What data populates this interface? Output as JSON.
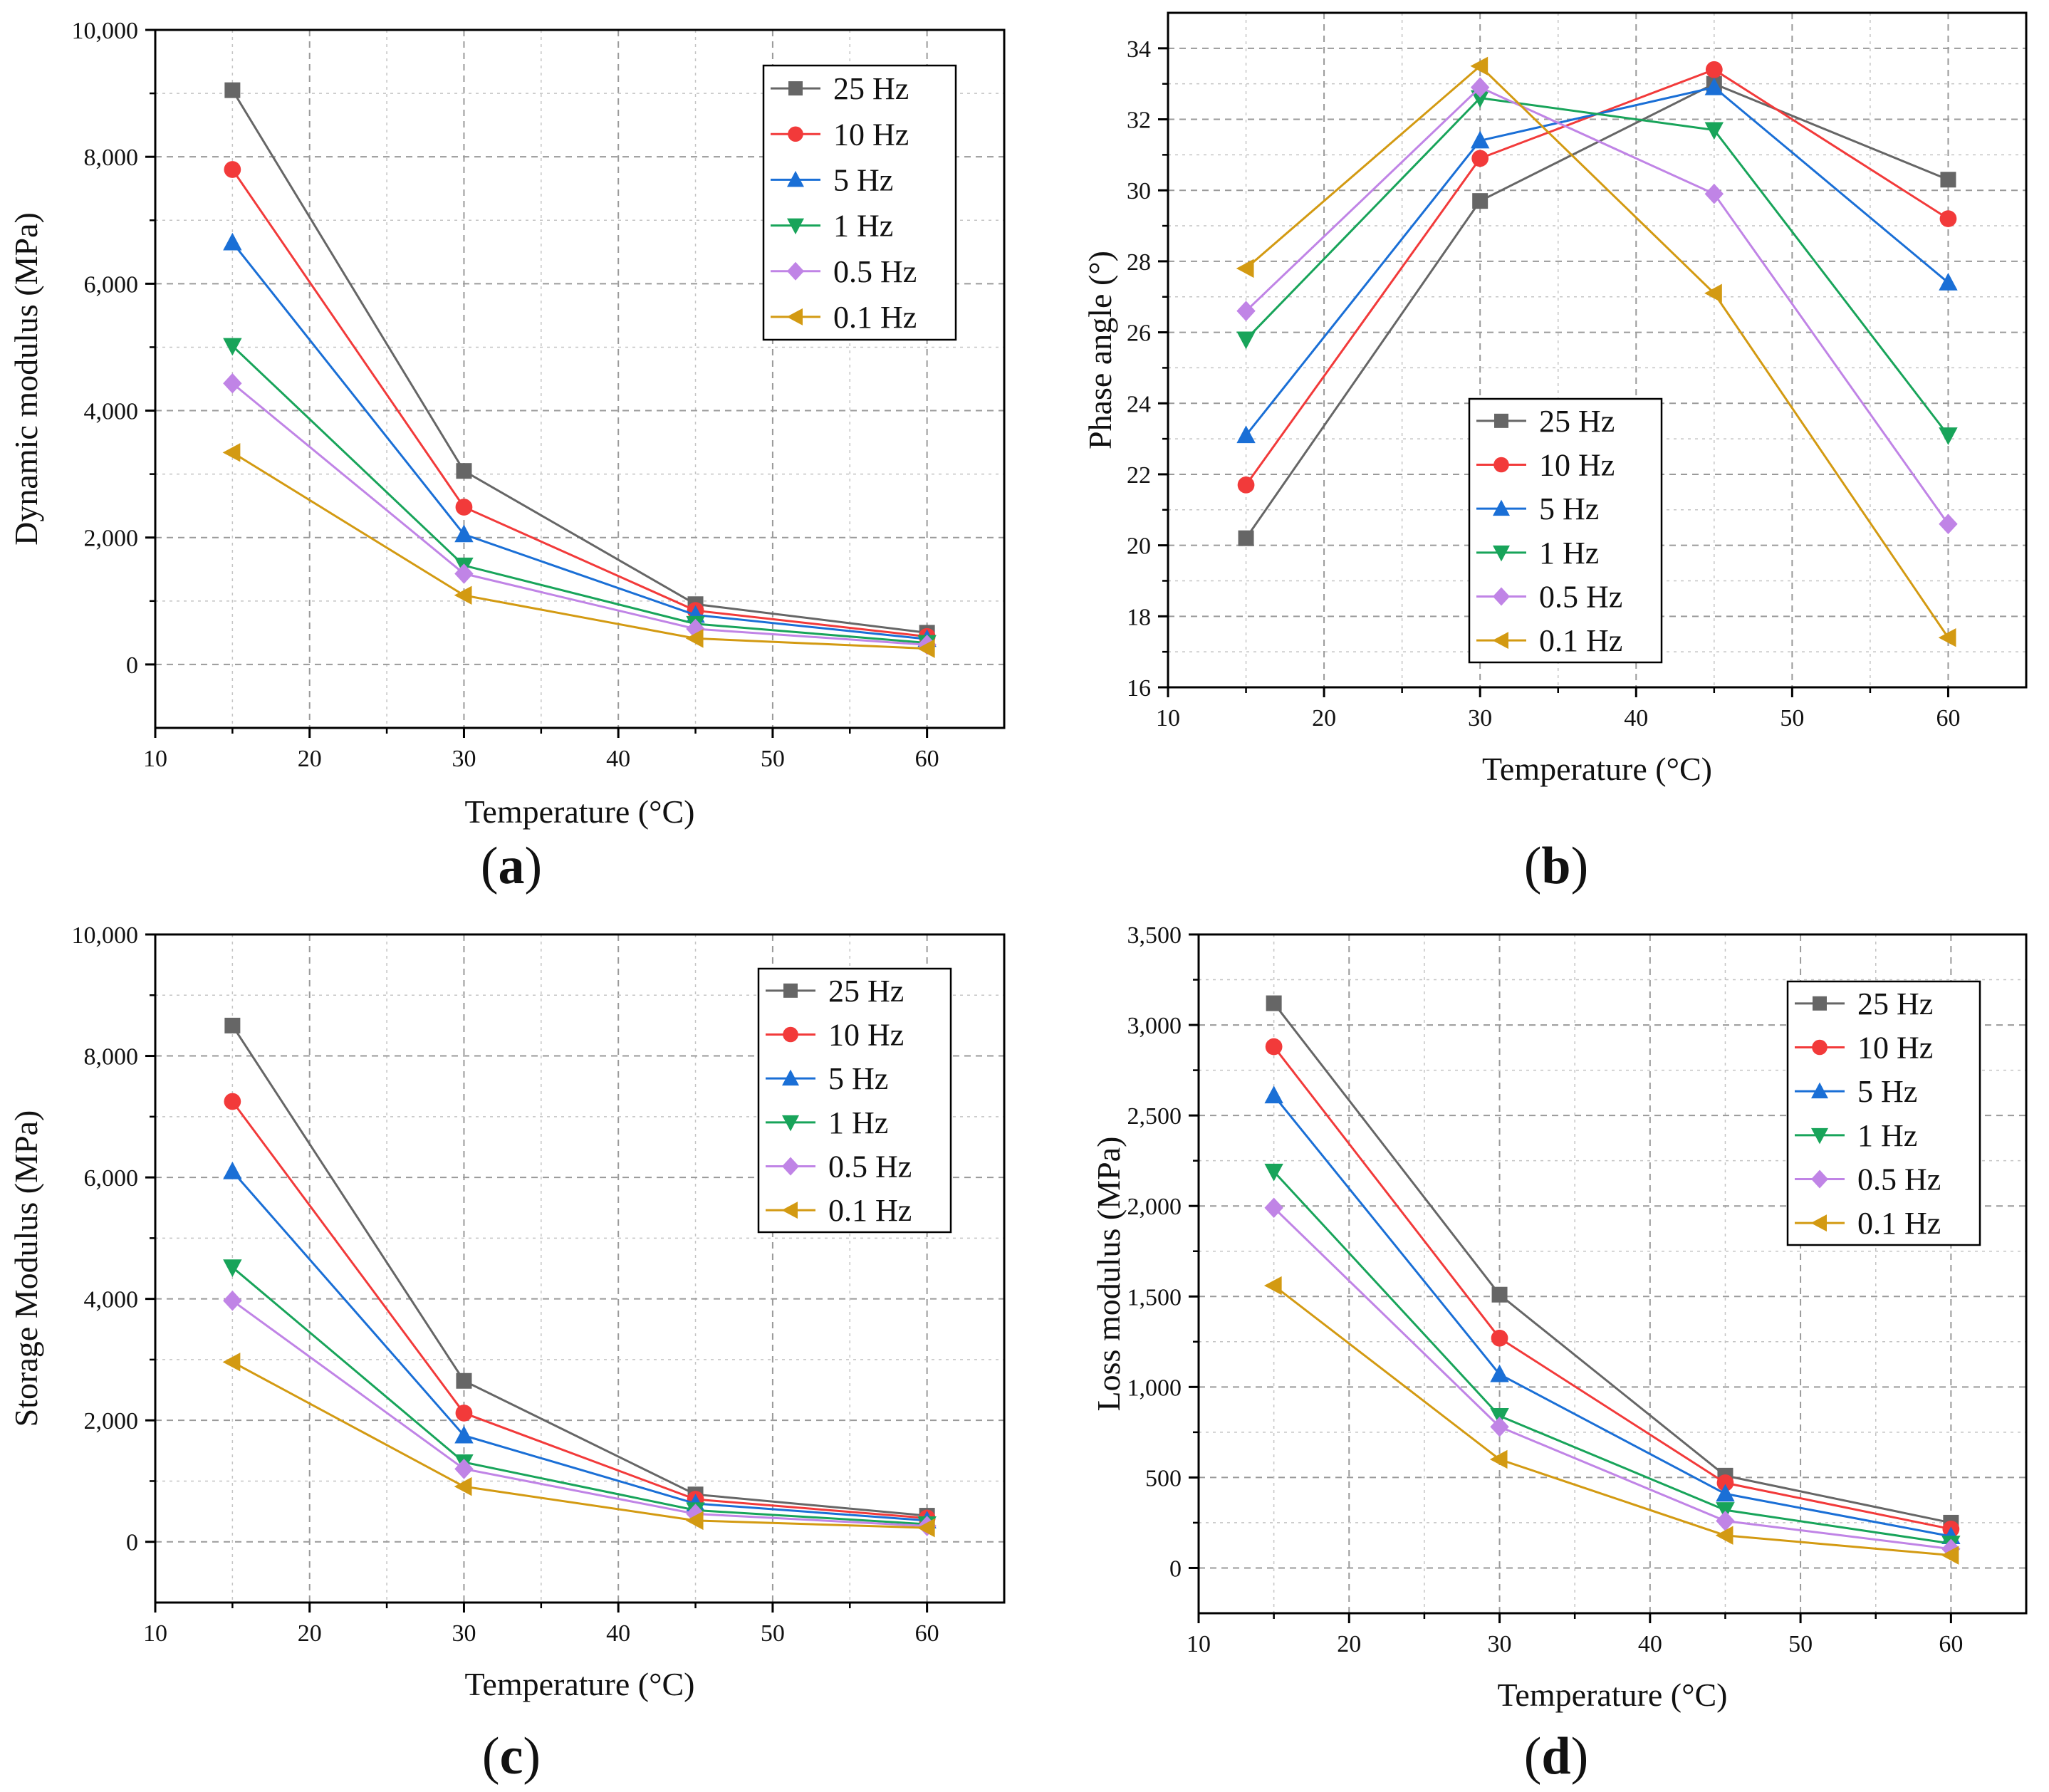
{
  "series_styles": {
    "25 Hz": {
      "color": "#666666",
      "marker": "square"
    },
    "10 Hz": {
      "color": "#f23a3a",
      "marker": "circle"
    },
    "5 Hz": {
      "color": "#1a6fd6",
      "marker": "triangle-up"
    },
    "1 Hz": {
      "color": "#18a45a",
      "marker": "triangle-down"
    },
    "0.5 Hz": {
      "color": "#c084e6",
      "marker": "diamond"
    },
    "0.1 Hz": {
      "color": "#d39a12",
      "marker": "triangle-left"
    }
  },
  "chart_data": [
    {
      "id": "a",
      "type": "line",
      "panel_label": "a",
      "xlabel": "Temperature (°C)",
      "ylabel": "Dynamic modulus (MPa)",
      "xlim": [
        10,
        65
      ],
      "ylim": [
        -1000,
        10000
      ],
      "xticks": [
        10,
        20,
        30,
        40,
        50,
        60
      ],
      "xtick_labels": [
        "10",
        "20",
        "30",
        "40",
        "50",
        "60"
      ],
      "yticks": [
        0,
        2000,
        4000,
        6000,
        8000,
        10000
      ],
      "ytick_labels": [
        "0",
        "2,000",
        "4,000",
        "6,000",
        "8,000",
        "10,000"
      ],
      "grid": true,
      "legend_position": "top-right",
      "x": [
        15,
        30,
        45,
        60
      ],
      "series": [
        {
          "name": "25 Hz",
          "values": [
            9050,
            3050,
            950,
            500
          ]
        },
        {
          "name": "10 Hz",
          "values": [
            7800,
            2480,
            850,
            440
          ]
        },
        {
          "name": "5 Hz",
          "values": [
            6650,
            2050,
            780,
            400
          ]
        },
        {
          "name": "1 Hz",
          "values": [
            5020,
            1560,
            640,
            340
          ]
        },
        {
          "name": "0.5 Hz",
          "values": [
            4430,
            1430,
            560,
            310
          ]
        },
        {
          "name": "0.1 Hz",
          "values": [
            3340,
            1090,
            410,
            250
          ]
        }
      ]
    },
    {
      "id": "b",
      "type": "line",
      "panel_label": "b",
      "xlabel": "Temperature (°C)",
      "ylabel": "Phase angle (°)",
      "xlim": [
        10,
        65
      ],
      "ylim": [
        16,
        35
      ],
      "xticks": [
        10,
        20,
        30,
        40,
        50,
        60
      ],
      "xtick_labels": [
        "10",
        "20",
        "30",
        "40",
        "50",
        "60"
      ],
      "yticks": [
        16,
        18,
        20,
        22,
        24,
        26,
        28,
        30,
        32,
        34
      ],
      "ytick_labels": [
        "16",
        "18",
        "20",
        "22",
        "24",
        "26",
        "28",
        "30",
        "32",
        "34"
      ],
      "grid": true,
      "legend_position": "center-left",
      "x": [
        15,
        30,
        45,
        60
      ],
      "series": [
        {
          "name": "25 Hz",
          "values": [
            20.2,
            29.7,
            33.0,
            30.3
          ]
        },
        {
          "name": "10 Hz",
          "values": [
            21.7,
            30.9,
            33.4,
            29.2
          ]
        },
        {
          "name": "5 Hz",
          "values": [
            23.1,
            31.4,
            32.9,
            27.4
          ]
        },
        {
          "name": "1 Hz",
          "values": [
            25.8,
            32.6,
            31.7,
            23.1
          ]
        },
        {
          "name": "0.5 Hz",
          "values": [
            26.6,
            32.9,
            29.9,
            20.6
          ]
        },
        {
          "name": "0.1 Hz",
          "values": [
            27.8,
            33.5,
            27.1,
            17.4
          ]
        }
      ]
    },
    {
      "id": "c",
      "type": "line",
      "panel_label": "c",
      "xlabel": "Temperature (°C)",
      "ylabel": "Storage Modulus (MPa)",
      "xlim": [
        10,
        65
      ],
      "ylim": [
        -1000,
        10000
      ],
      "xticks": [
        10,
        20,
        30,
        40,
        50,
        60
      ],
      "xtick_labels": [
        "10",
        "20",
        "30",
        "40",
        "50",
        "60"
      ],
      "yticks": [
        0,
        2000,
        4000,
        6000,
        8000,
        10000
      ],
      "ytick_labels": [
        "0",
        "2,000",
        "4,000",
        "6,000",
        "8,000",
        "10,000"
      ],
      "grid": true,
      "legend_position": "top-right",
      "x": [
        15,
        30,
        45,
        60
      ],
      "series": [
        {
          "name": "25 Hz",
          "values": [
            8500,
            2650,
            780,
            430
          ]
        },
        {
          "name": "10 Hz",
          "values": [
            7250,
            2120,
            700,
            390
          ]
        },
        {
          "name": "5 Hz",
          "values": [
            6100,
            1750,
            630,
            350
          ]
        },
        {
          "name": "1 Hz",
          "values": [
            4520,
            1310,
            520,
            290
          ]
        },
        {
          "name": "0.5 Hz",
          "values": [
            3970,
            1200,
            460,
            260
          ]
        },
        {
          "name": "0.1 Hz",
          "values": [
            2960,
            910,
            350,
            230
          ]
        }
      ]
    },
    {
      "id": "d",
      "type": "line",
      "panel_label": "d",
      "xlabel": "Temperature (°C)",
      "ylabel": "Loss modulus (MPa)",
      "xlim": [
        10,
        65
      ],
      "ylim": [
        -250,
        3500
      ],
      "xticks": [
        10,
        20,
        30,
        40,
        50,
        60
      ],
      "xtick_labels": [
        "10",
        "20",
        "30",
        "40",
        "50",
        "60"
      ],
      "yticks": [
        0,
        500,
        1000,
        1500,
        2000,
        2500,
        3000,
        3500
      ],
      "ytick_labels": [
        "0",
        "500",
        "1,000",
        "1,500",
        "2,000",
        "2,500",
        "3,000",
        "3,500"
      ],
      "grid": true,
      "legend_position": "top-right",
      "x": [
        15,
        30,
        45,
        60
      ],
      "series": [
        {
          "name": "25 Hz",
          "values": [
            3120,
            1510,
            510,
            250
          ]
        },
        {
          "name": "10 Hz",
          "values": [
            2880,
            1270,
            470,
            215
          ]
        },
        {
          "name": "5 Hz",
          "values": [
            2610,
            1070,
            410,
            175
          ]
        },
        {
          "name": "1 Hz",
          "values": [
            2190,
            840,
            320,
            135
          ]
        },
        {
          "name": "0.5 Hz",
          "values": [
            1990,
            780,
            260,
            105
          ]
        },
        {
          "name": "0.1 Hz",
          "values": [
            1560,
            600,
            180,
            70
          ]
        }
      ]
    }
  ]
}
